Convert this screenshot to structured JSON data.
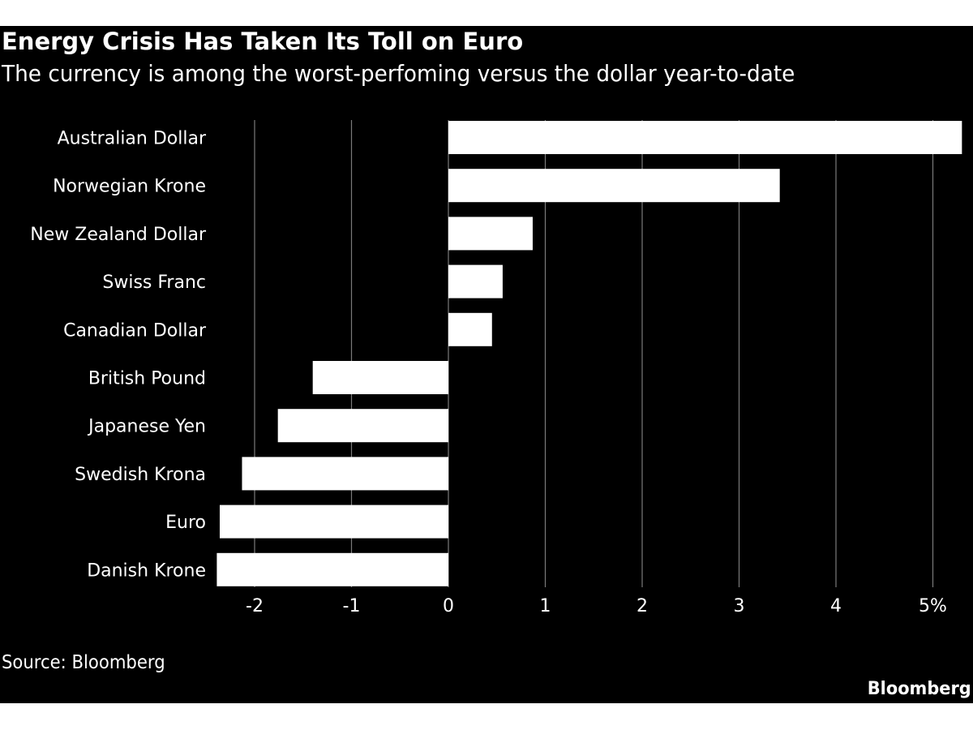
{
  "colors": {
    "background": "#000000",
    "bar": "#ffffff",
    "gridline": "#7a7a7a",
    "text": "#ffffff",
    "page": "#ffffff"
  },
  "chart_data": {
    "type": "bar",
    "orientation": "horizontal",
    "title": "Energy Crisis Has Taken Its Toll on Euro",
    "subtitle": "The currency is among the worst-perfoming versus the dollar year-to-date",
    "categories": [
      "Australian Dollar",
      "Norwegian Krone",
      "New Zealand Dollar",
      "Swiss Franc",
      "Canadian Dollar",
      "British Pound",
      "Japanese Yen",
      "Swedish Krona",
      "Euro",
      "Danish Krone"
    ],
    "values": [
      5.3,
      3.42,
      0.87,
      0.56,
      0.45,
      -1.4,
      -1.76,
      -2.13,
      -2.36,
      -2.39
    ],
    "xlim": [
      -2.4,
      5.3
    ],
    "xticks": [
      -2,
      -1,
      0,
      1,
      2,
      3,
      4,
      5
    ],
    "xtick_labels": [
      "-2",
      "-1",
      "0",
      "1",
      "2",
      "3",
      "4",
      "5%"
    ],
    "xlabel": "",
    "ylabel": "",
    "grid": true,
    "legend": "none"
  },
  "source": "Source: Bloomberg",
  "brand": "Bloomberg"
}
